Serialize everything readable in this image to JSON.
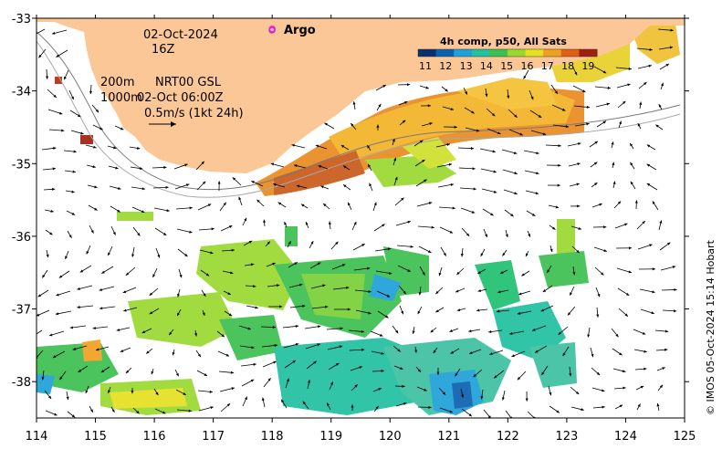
{
  "header": {
    "date": "02-Oct-2024",
    "hour": "16Z",
    "argo_label": "Argo"
  },
  "legend": {
    "depth_200": "200m",
    "depth_1000": "1000m",
    "product": "NRT00 GSL",
    "product_time": "02-Oct 06:00Z",
    "scale_text": "0.5m/s (1kt 24h)"
  },
  "colorbar": {
    "title": "4h comp, p50, All Sats",
    "ticks": [
      "11",
      "12",
      "13",
      "14",
      "15",
      "16",
      "17",
      "18",
      "19"
    ],
    "colors": [
      "#08306b",
      "#0b5fb0",
      "#1ea0d8",
      "#20c0a0",
      "#3cc050",
      "#9ad830",
      "#e6e020",
      "#f0a020",
      "#e06018",
      "#a02010"
    ]
  },
  "axes": {
    "lon_ticks": [
      "114",
      "115",
      "116",
      "117",
      "118",
      "119",
      "120",
      "121",
      "122",
      "123",
      "124",
      "125"
    ],
    "lat_ticks": [
      "-33",
      "-34",
      "-35",
      "-36",
      "-37",
      "-38"
    ],
    "lon_range": [
      114,
      125
    ],
    "lat_range": [
      -38.5,
      -33
    ]
  },
  "credit": "© IMOS 05-Oct-2024 15:14 Hobart",
  "colors": {
    "land": "#fcc796",
    "ocean": "#ffffff",
    "argo": "#e020e0"
  },
  "map_data": {
    "argo_float": {
      "lon": 118.0,
      "lat": -33.15
    }
  }
}
